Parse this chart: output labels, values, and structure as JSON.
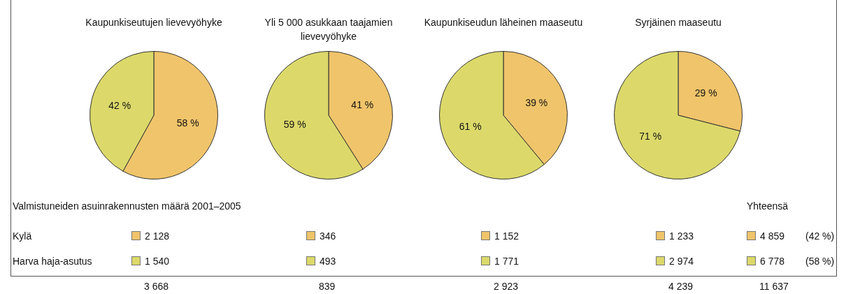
{
  "chart_data": [
    {
      "type": "pie",
      "title": "Kaupunkiseutujen lievevyöhyke",
      "categories": [
        null,
        null
      ],
      "values": [
        58,
        42
      ],
      "colors": [
        "#f0c46a",
        "#dcd96a"
      ],
      "value_labels": [
        "58 %",
        "42 %"
      ]
    },
    {
      "type": "pie",
      "title": "Yli 5 000 asukkaan taajamien lievevyöhyke",
      "categories": [
        null,
        null
      ],
      "values": [
        41,
        59
      ],
      "colors": [
        "#f0c46a",
        "#dcd96a"
      ],
      "value_labels": [
        "41 %",
        "59 %"
      ]
    },
    {
      "type": "pie",
      "title": "Kaupunkiseudun läheinen maaseutu",
      "categories": [
        null,
        null
      ],
      "values": [
        39,
        61
      ],
      "colors": [
        "#f0c46a",
        "#dcd96a"
      ],
      "value_labels": [
        "39 %",
        "61 %"
      ]
    },
    {
      "type": "pie",
      "title": "Syrjäinen maaseutu",
      "categories": [
        null,
        null
      ],
      "values": [
        29,
        71
      ],
      "colors": [
        "#f0c46a",
        "#dcd96a"
      ],
      "value_labels": [
        "29 %",
        "71 %"
      ]
    },
    {
      "type": "other",
      "title": "Valmistuneiden asuinrakennusten määrä 2001–2005",
      "categories": [
        "Kylä",
        "Harva haja-asutus"
      ],
      "colors": [
        "#f0c46a",
        "#dcd96a"
      ],
      "series": [
        {
          "values": [
            2128,
            1540
          ]
        },
        {
          "values": [
            346,
            493
          ]
        },
        {
          "values": [
            1152,
            1771
          ]
        },
        {
          "values": [
            1233,
            2974
          ]
        },
        {
          "name": "Yhteensä",
          "values": [
            4859,
            6778
          ]
        }
      ],
      "data_labels": true,
      "totals": [
        "3 668",
        "839",
        "2 923",
        "4 239",
        "11 637"
      ],
      "annotations": [
        "(42 %)",
        "(58 %)"
      ]
    }
  ]
}
